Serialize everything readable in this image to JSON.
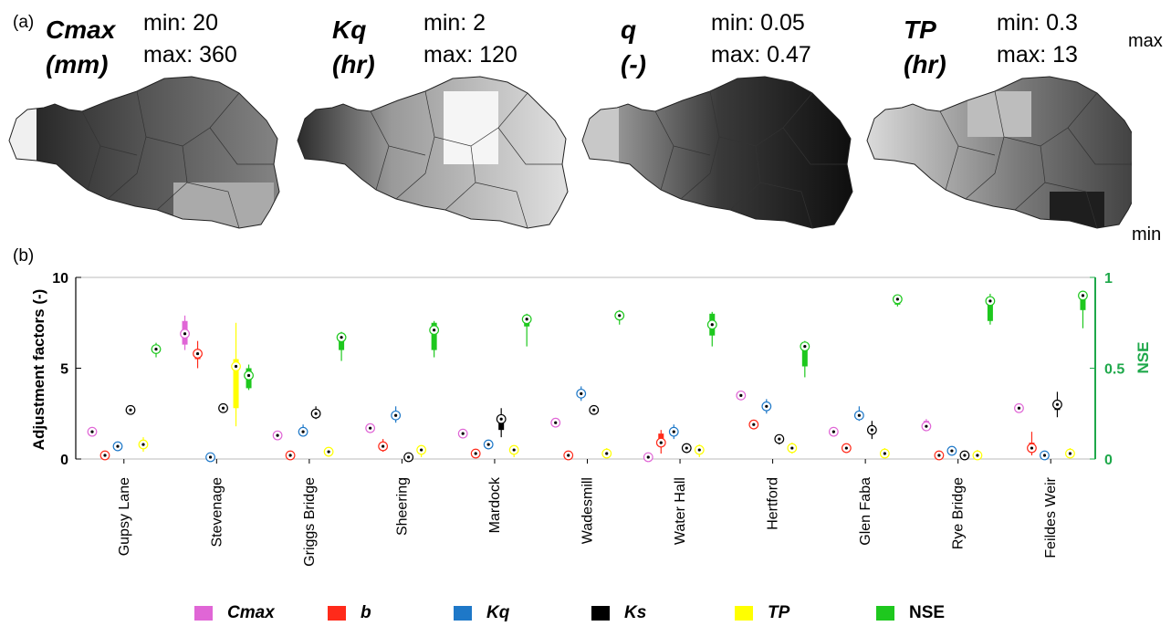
{
  "panel_a_label": "(a)",
  "panel_b_label": "(b)",
  "maps": [
    {
      "title_line1": "Cmax",
      "title_line2": "(mm)",
      "min_text": "min: 20",
      "max_text": "max: 360"
    },
    {
      "title_line1": "Kq",
      "title_line2": "(hr)",
      "min_text": "min: 2",
      "max_text": "max: 120"
    },
    {
      "title_line1": "q",
      "title_line2": "(-)",
      "min_text": "min: 0.05",
      "max_text": "max: 0.47"
    },
    {
      "title_line1": "TP",
      "title_line2": "(hr)",
      "min_text": "min: 0.3",
      "max_text": "max: 13"
    }
  ],
  "colorscale": {
    "max_label": "max",
    "min_label": "min"
  },
  "legend": [
    {
      "label": "Cmax",
      "color": "#e066d6"
    },
    {
      "label": "b",
      "color": "#ff2a1a"
    },
    {
      "label": "Kq",
      "color": "#1e78c8"
    },
    {
      "label": "Ks",
      "color": "#000000"
    },
    {
      "label": "TP",
      "color": "#ffff00"
    },
    {
      "label": "NSE",
      "color": "#1ec81e"
    }
  ],
  "chart_data": {
    "type": "box",
    "ylabel": "Adjustment factors (-)",
    "y2label": "NSE",
    "ylim": [
      0,
      10
    ],
    "y2lim": [
      0,
      1
    ],
    "yticks": [
      "0",
      "5",
      "10"
    ],
    "y2ticks": [
      "0",
      "0.5",
      "1"
    ],
    "categories": [
      "Gupsy Lane",
      "Stevenage",
      "Griggs Bridge",
      "Sheering",
      "Mardock",
      "Wadesmill",
      "Water Hall",
      "Hertford",
      "Glen Faba",
      "Rye Bridge",
      "Feildes Weir"
    ],
    "series": [
      {
        "name": "Cmax",
        "color": "#e066d6",
        "axis": "left",
        "boxes": [
          [
            1.5,
            1.5,
            1.5,
            1.5,
            1.5
          ],
          [
            6.0,
            6.3,
            6.9,
            7.6,
            7.9
          ],
          [
            1.3,
            1.3,
            1.3,
            1.3,
            1.3
          ],
          [
            1.7,
            1.7,
            1.7,
            1.7,
            1.7
          ],
          [
            1.4,
            1.4,
            1.4,
            1.4,
            1.4
          ],
          [
            2.0,
            2.0,
            2.0,
            2.0,
            2.0
          ],
          [
            0.1,
            0.1,
            0.1,
            0.1,
            0.1
          ],
          [
            3.5,
            3.5,
            3.5,
            3.5,
            3.5
          ],
          [
            1.5,
            1.5,
            1.5,
            1.5,
            1.5
          ],
          [
            1.6,
            1.7,
            1.8,
            2.1,
            2.2
          ],
          [
            2.8,
            2.8,
            2.8,
            2.8,
            2.8
          ]
        ]
      },
      {
        "name": "b",
        "color": "#ff2a1a",
        "axis": "left",
        "boxes": [
          [
            0.2,
            0.2,
            0.2,
            0.2,
            0.2
          ],
          [
            5.0,
            5.5,
            5.8,
            6.0,
            6.5
          ],
          [
            0.2,
            0.2,
            0.2,
            0.2,
            0.2
          ],
          [
            0.4,
            0.6,
            0.7,
            0.9,
            1.1
          ],
          [
            0.3,
            0.3,
            0.3,
            0.3,
            0.3
          ],
          [
            0.2,
            0.2,
            0.2,
            0.2,
            0.2
          ],
          [
            0.3,
            0.7,
            0.9,
            1.4,
            1.6
          ],
          [
            1.9,
            1.9,
            1.9,
            1.9,
            1.9
          ],
          [
            0.6,
            0.6,
            0.6,
            0.6,
            0.6
          ],
          [
            0.2,
            0.2,
            0.2,
            0.2,
            0.2
          ],
          [
            0.2,
            0.4,
            0.6,
            0.9,
            1.5
          ]
        ]
      },
      {
        "name": "Kq",
        "color": "#1e78c8",
        "axis": "left",
        "boxes": [
          [
            0.7,
            0.7,
            0.7,
            0.7,
            0.7
          ],
          [
            0.1,
            0.1,
            0.1,
            0.1,
            0.1
          ],
          [
            1.3,
            1.4,
            1.5,
            1.6,
            1.9
          ],
          [
            2.0,
            2.2,
            2.4,
            2.6,
            2.9
          ],
          [
            0.8,
            0.8,
            0.8,
            0.8,
            0.8
          ],
          [
            3.2,
            3.4,
            3.6,
            3.8,
            4.0
          ],
          [
            1.1,
            1.3,
            1.5,
            1.7,
            1.9
          ],
          [
            2.5,
            2.8,
            2.9,
            3.1,
            3.3
          ],
          [
            2.1,
            2.3,
            2.4,
            2.6,
            2.9
          ],
          [
            0.3,
            0.4,
            0.45,
            0.5,
            0.6
          ],
          [
            0.2,
            0.2,
            0.2,
            0.2,
            0.2
          ]
        ]
      },
      {
        "name": "Ks",
        "color": "#000000",
        "axis": "left",
        "boxes": [
          [
            2.7,
            2.7,
            2.7,
            2.7,
            2.7
          ],
          [
            2.8,
            2.8,
            2.8,
            2.8,
            2.8
          ],
          [
            2.2,
            2.4,
            2.5,
            2.6,
            2.9
          ],
          [
            0.1,
            0.1,
            0.1,
            0.1,
            0.1
          ],
          [
            1.2,
            1.6,
            2.2,
            2.3,
            2.8
          ],
          [
            2.7,
            2.7,
            2.7,
            2.7,
            2.7
          ],
          [
            0.6,
            0.6,
            0.6,
            0.6,
            0.6
          ],
          [
            0.8,
            0.9,
            1.1,
            1.2,
            1.3
          ],
          [
            1.1,
            1.4,
            1.6,
            1.8,
            2.1
          ],
          [
            0.2,
            0.2,
            0.2,
            0.2,
            0.2
          ],
          [
            2.3,
            2.7,
            3.0,
            3.1,
            3.7
          ]
        ]
      },
      {
        "name": "TP",
        "color": "#ffff00",
        "axis": "left",
        "boxes": [
          [
            0.4,
            0.7,
            0.8,
            0.9,
            1.2
          ],
          [
            1.8,
            2.8,
            5.1,
            5.5,
            7.5
          ],
          [
            0.2,
            0.3,
            0.4,
            0.5,
            0.6
          ],
          [
            0.1,
            0.3,
            0.5,
            0.6,
            0.7
          ],
          [
            0.1,
            0.3,
            0.5,
            0.6,
            0.7
          ],
          [
            0.1,
            0.2,
            0.3,
            0.4,
            0.6
          ],
          [
            0.1,
            0.3,
            0.5,
            0.6,
            0.8
          ],
          [
            0.3,
            0.5,
            0.6,
            0.7,
            0.9
          ],
          [
            0.1,
            0.2,
            0.3,
            0.4,
            0.6
          ],
          [
            0.05,
            0.1,
            0.2,
            0.3,
            0.5
          ],
          [
            0.1,
            0.2,
            0.3,
            0.4,
            0.6
          ]
        ]
      },
      {
        "name": "NSE",
        "color": "#1ec81e",
        "axis": "right",
        "boxes": [
          [
            0.56,
            0.59,
            0.605,
            0.62,
            0.64
          ],
          [
            0.38,
            0.39,
            0.46,
            0.5,
            0.52
          ],
          [
            0.54,
            0.6,
            0.67,
            0.68,
            0.7
          ],
          [
            0.56,
            0.6,
            0.71,
            0.75,
            0.76
          ],
          [
            0.62,
            0.73,
            0.77,
            0.78,
            0.8
          ],
          [
            0.74,
            0.77,
            0.79,
            0.81,
            0.82
          ],
          [
            0.62,
            0.68,
            0.74,
            0.8,
            0.81
          ],
          [
            0.45,
            0.51,
            0.62,
            0.63,
            0.65
          ],
          [
            0.84,
            0.85,
            0.88,
            0.89,
            0.9
          ],
          [
            0.74,
            0.76,
            0.87,
            0.89,
            0.91
          ],
          [
            0.72,
            0.82,
            0.9,
            0.91,
            0.92
          ]
        ]
      }
    ],
    "legend_position": "bottom"
  }
}
